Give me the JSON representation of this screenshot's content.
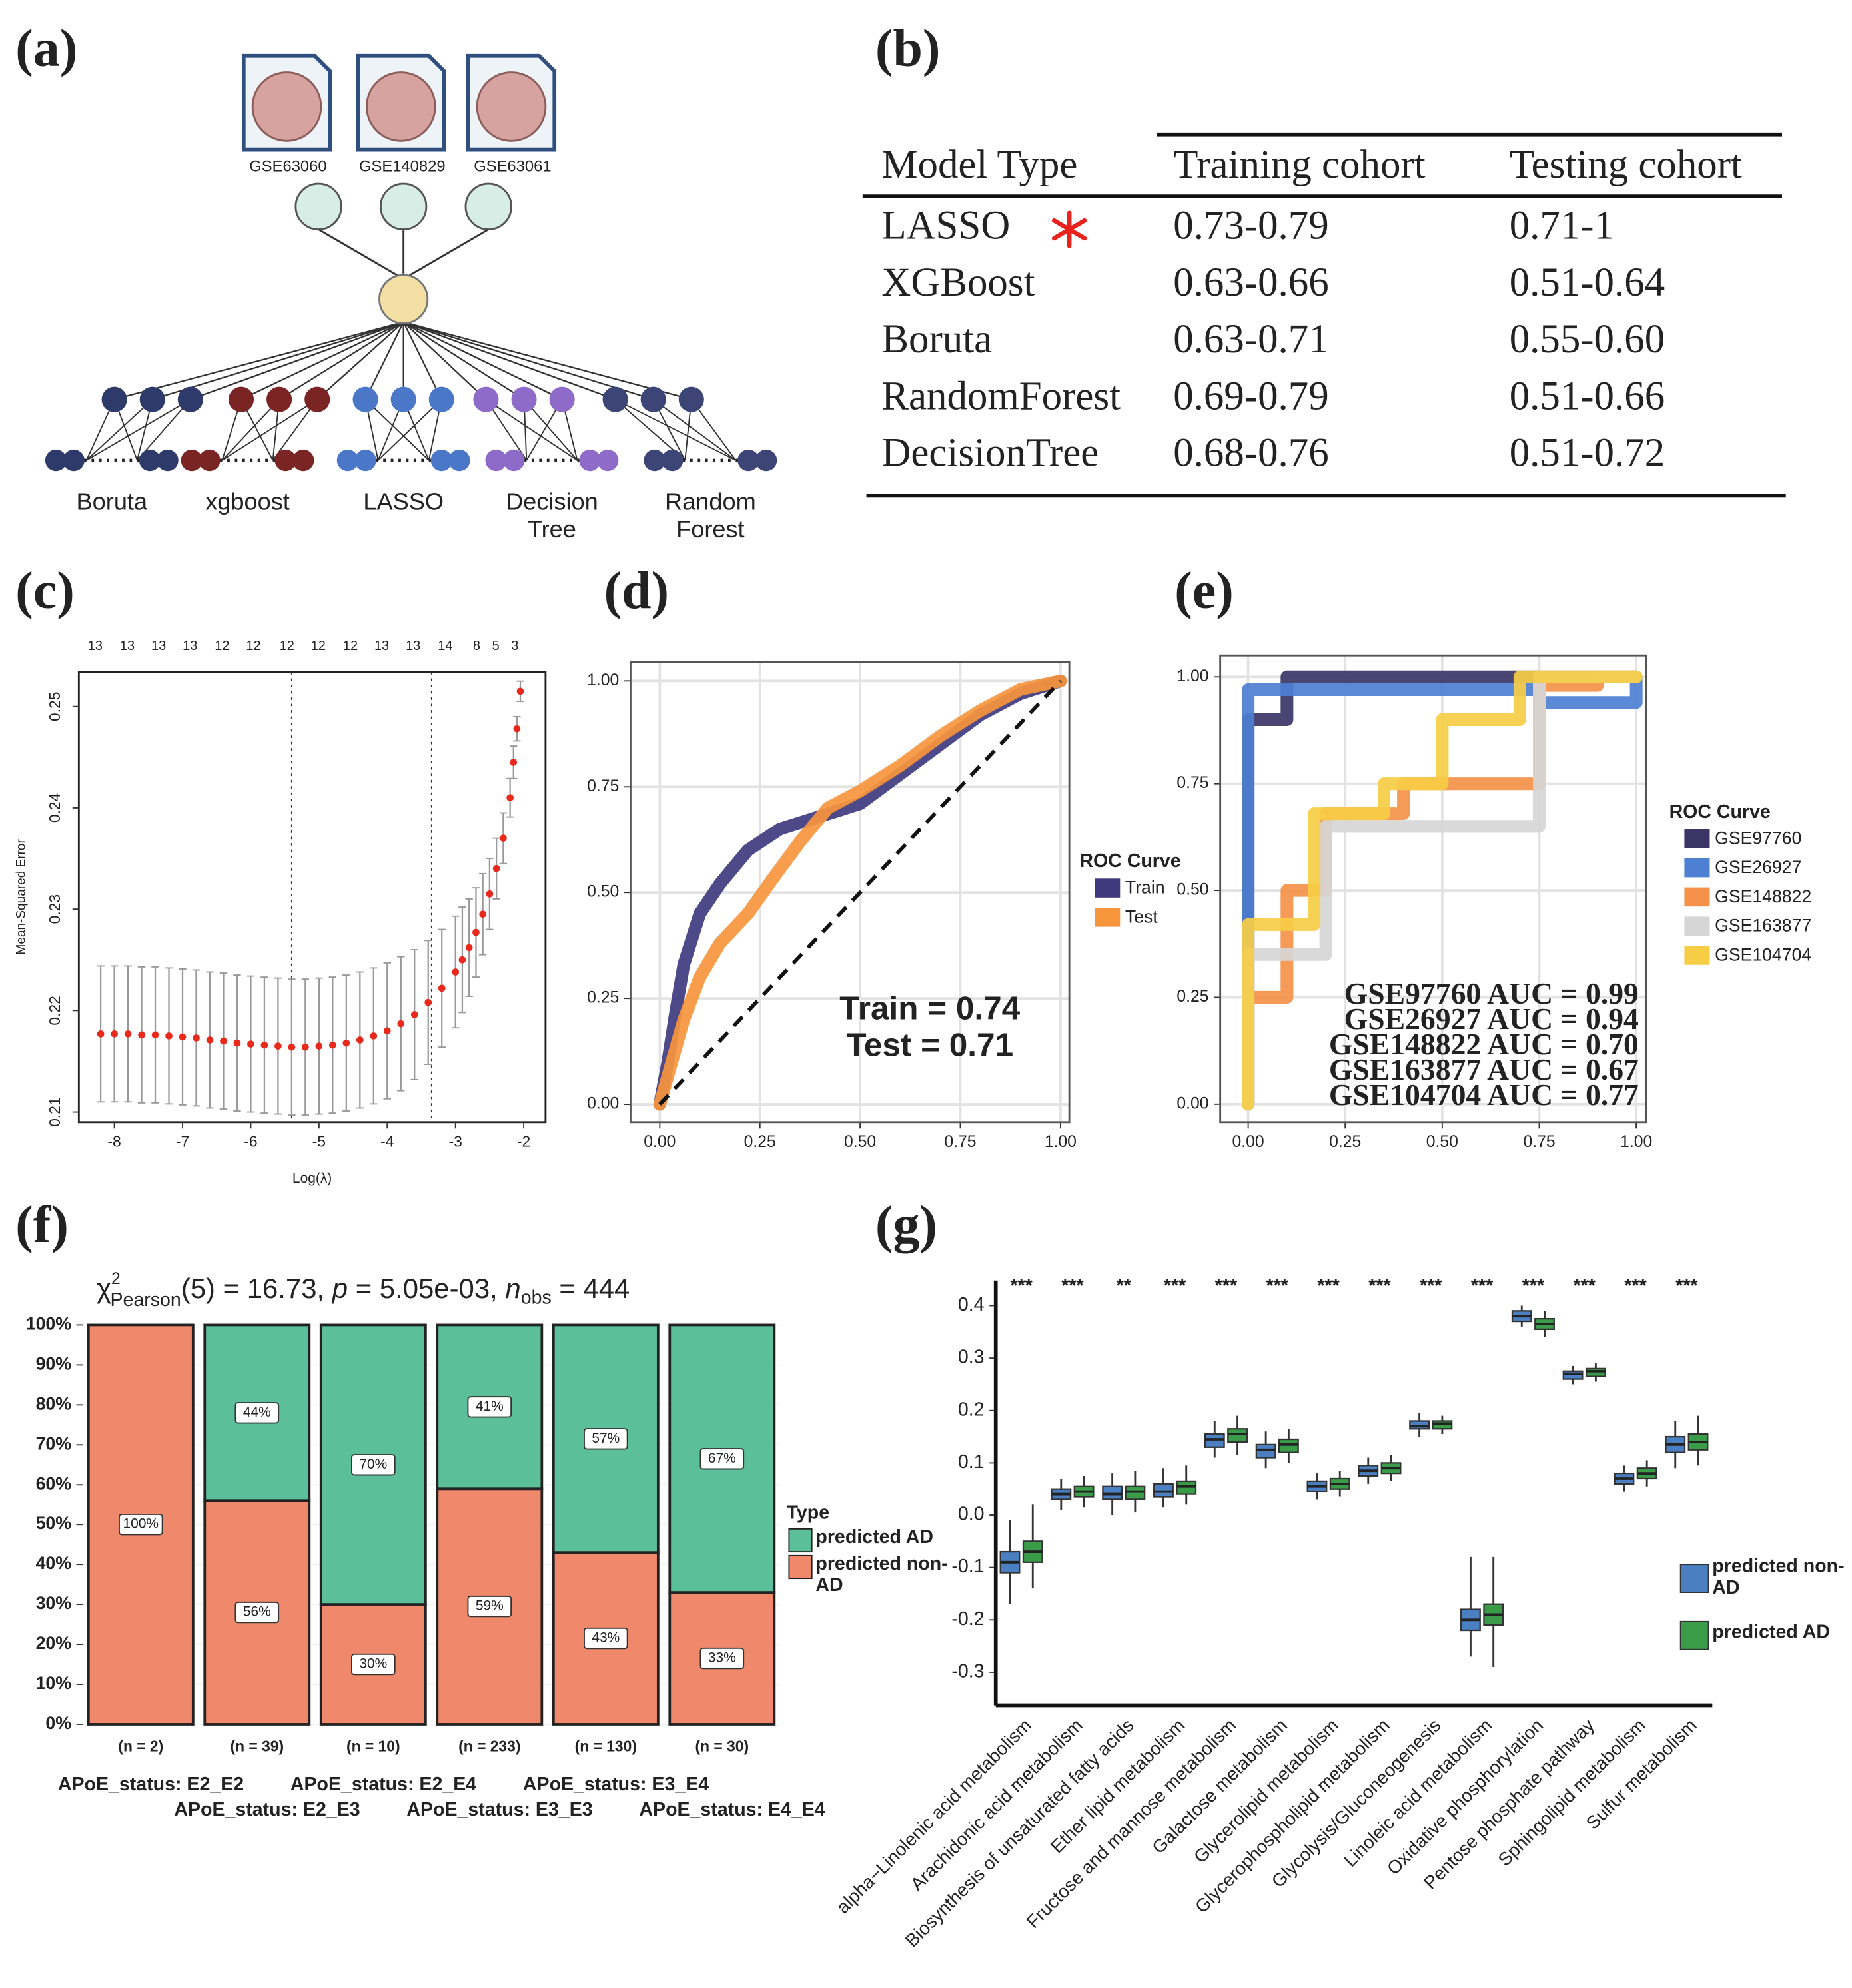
{
  "panel_labels": [
    "(a)",
    "(b)",
    "(c)",
    "(d)",
    "(e)",
    "(f)",
    "(g)"
  ],
  "diagram": {
    "datasets": [
      "GSE63060",
      "GSE140829",
      "GSE63061"
    ],
    "methods": [
      [
        "Boruta"
      ],
      [
        "xgboost"
      ],
      [
        "LASSO"
      ],
      [
        "Decision",
        "Tree"
      ],
      [
        "Random",
        "Forest"
      ]
    ]
  },
  "table": {
    "header": [
      "Model Type",
      "Training cohort",
      "Testing cohort"
    ],
    "rows": [
      [
        "LASSO",
        "0.73-0.79",
        "0.71-1"
      ],
      [
        "XGBoost",
        "0.63-0.66",
        "0.51-0.64"
      ],
      [
        "Boruta",
        "0.63-0.71",
        "0.55-0.60"
      ],
      [
        "RandomForest",
        "0.69-0.79",
        "0.51-0.66"
      ],
      [
        "DecisionTree",
        "0.68-0.76",
        "0.51-0.72"
      ]
    ]
  },
  "chart_data": [
    {
      "type": "errorbar",
      "x_label": "Log(λ)",
      "y_label": "Mean-Squared Error",
      "color": "#e8291c",
      "xlim": [
        -8.52,
        -1.68
      ],
      "ylim": [
        0.209,
        0.2534
      ],
      "xticks": [
        -8,
        -7,
        -6,
        -5,
        -4,
        -3,
        -2
      ],
      "yticks": [
        0.21,
        0.22,
        0.23,
        0.24,
        0.25
      ],
      "top_ticks": [
        {
          "value": -8.28,
          "label": "13"
        },
        {
          "value": -7.81,
          "label": "13"
        },
        {
          "value": -7.35,
          "label": "13"
        },
        {
          "value": -6.89,
          "label": "13"
        },
        {
          "value": -6.42,
          "label": "12"
        },
        {
          "value": -5.96,
          "label": "12"
        },
        {
          "value": -5.47,
          "label": "12"
        },
        {
          "value": -5.01,
          "label": "12"
        },
        {
          "value": -4.54,
          "label": "12"
        },
        {
          "value": -4.08,
          "label": "13"
        },
        {
          "value": -3.62,
          "label": "13"
        },
        {
          "value": -3.15,
          "label": "14"
        },
        {
          "value": -2.69,
          "label": "8"
        },
        {
          "value": -2.41,
          "label": "5"
        },
        {
          "value": -2.13,
          "label": "3"
        }
      ],
      "vlines": [
        -5.4,
        -3.35
      ],
      "x": [
        -8.2,
        -8.0,
        -7.8,
        -7.6,
        -7.4,
        -7.2,
        -7.0,
        -6.8,
        -6.6,
        -6.4,
        -6.2,
        -6.0,
        -5.8,
        -5.6,
        -5.4,
        -5.2,
        -5.0,
        -4.8,
        -4.6,
        -4.4,
        -4.2,
        -4.0,
        -3.8,
        -3.6,
        -3.4,
        -3.2,
        -3.0,
        -2.9,
        -2.8,
        -2.7,
        -2.6,
        -2.5,
        -2.4,
        -2.3,
        -2.2,
        -2.15,
        -2.1,
        -2.05
      ],
      "values": [
        0.2177,
        0.2177,
        0.2177,
        0.2176,
        0.2176,
        0.2175,
        0.2174,
        0.2173,
        0.2171,
        0.217,
        0.2168,
        0.2167,
        0.2166,
        0.2165,
        0.2164,
        0.2164,
        0.2165,
        0.2166,
        0.2168,
        0.2171,
        0.2175,
        0.218,
        0.2187,
        0.2196,
        0.2208,
        0.2222,
        0.2238,
        0.225,
        0.2262,
        0.2277,
        0.2295,
        0.2315,
        0.234,
        0.237,
        0.241,
        0.2445,
        0.2478,
        0.2515
      ],
      "errors": [
        0.0067,
        0.0067,
        0.0067,
        0.0067,
        0.0067,
        0.0067,
        0.0067,
        0.0067,
        0.0067,
        0.0067,
        0.0067,
        0.0067,
        0.0067,
        0.0067,
        0.0067,
        0.0067,
        0.0067,
        0.0067,
        0.0067,
        0.0067,
        0.0067,
        0.0067,
        0.0066,
        0.0064,
        0.0061,
        0.0058,
        0.0055,
        0.0052,
        0.0048,
        0.0044,
        0.004,
        0.0035,
        0.003,
        0.0025,
        0.0019,
        0.0016,
        0.0012,
        0.001
      ]
    },
    {
      "type": "roc",
      "legend_title": "ROC Curve",
      "grid": true,
      "diagonal": true,
      "xlim": [
        -0.073,
        1.022
      ],
      "ylim": [
        -0.042,
        1.045
      ],
      "xticks": [
        {
          "value": 0,
          "label": "0.00"
        },
        0.25,
        {
          "value": 0.5,
          "label": "0.50"
        },
        0.75,
        {
          "value": 1,
          "label": "1.00"
        }
      ],
      "yticks": [
        {
          "value": 0,
          "label": "0.00"
        },
        0.25,
        {
          "value": 0.5,
          "label": "0.50"
        },
        0.75,
        {
          "value": 1,
          "label": "1.00"
        }
      ],
      "series": [
        {
          "name": "Train",
          "color": "#3f3a7e",
          "x": [
            0,
            0.02,
            0.04,
            0.06,
            0.1,
            0.15,
            0.22,
            0.3,
            0.4,
            0.5,
            0.6,
            0.7,
            0.8,
            0.9,
            1
          ],
          "values": [
            0,
            0.1,
            0.22,
            0.33,
            0.45,
            0.52,
            0.6,
            0.65,
            0.68,
            0.71,
            0.78,
            0.85,
            0.92,
            0.97,
            1
          ]
        },
        {
          "name": "Test",
          "color": "#f7953d",
          "x": [
            0,
            0.03,
            0.06,
            0.1,
            0.15,
            0.22,
            0.28,
            0.35,
            0.42,
            0.5,
            0.6,
            0.7,
            0.8,
            0.9,
            1
          ],
          "values": [
            0,
            0.1,
            0.2,
            0.3,
            0.38,
            0.45,
            0.53,
            0.62,
            0.7,
            0.74,
            0.8,
            0.87,
            0.93,
            0.98,
            1
          ]
        }
      ],
      "annotations": [
        "Train = 0.74",
        "Test = 0.71"
      ]
    },
    {
      "type": "roc",
      "legend_title": "ROC Curve",
      "grid": true,
      "diagonal": false,
      "xlim": [
        -0.072,
        1.026
      ],
      "ylim": [
        -0.042,
        1.05
      ],
      "xticks": [
        {
          "value": 0,
          "label": "0.00"
        },
        0.25,
        {
          "value": 0.5,
          "label": "0.50"
        },
        0.75,
        {
          "value": 1,
          "label": "1.00"
        }
      ],
      "yticks": [
        {
          "value": 0,
          "label": "0.00"
        },
        0.25,
        {
          "value": 0.5,
          "label": "0.50"
        },
        0.75,
        {
          "value": 1,
          "label": "1.00"
        }
      ],
      "series": [
        {
          "name": "GSE97760",
          "color": "#3b3566",
          "x": [
            0,
            0,
            0.1,
            0.1,
            1
          ],
          "values": [
            0,
            0.9,
            0.9,
            1,
            1
          ]
        },
        {
          "name": "GSE26927",
          "color": "#4d7fd2",
          "x": [
            0,
            0,
            0.75,
            0.75,
            1,
            1
          ],
          "values": [
            0,
            0.97,
            0.97,
            0.94,
            0.94,
            1
          ]
        },
        {
          "name": "GSE148822",
          "color": "#f5914a",
          "x": [
            0,
            0,
            0.1,
            0.1,
            0.2,
            0.2,
            0.4,
            0.4,
            0.75,
            0.75,
            0.9,
            0.9,
            1
          ],
          "values": [
            0,
            0.25,
            0.25,
            0.5,
            0.5,
            0.68,
            0.68,
            0.75,
            0.75,
            0.98,
            0.98,
            1,
            1
          ]
        },
        {
          "name": "GSE163877",
          "color": "#d6d6d6",
          "x": [
            0,
            0,
            0.2,
            0.2,
            0.75,
            0.75,
            1
          ],
          "values": [
            0,
            0.35,
            0.35,
            0.65,
            0.65,
            1,
            1
          ]
        },
        {
          "name": "GSE104704",
          "color": "#f6cd45",
          "x": [
            0,
            0,
            0.17,
            0.17,
            0.35,
            0.35,
            0.5,
            0.5,
            0.7,
            0.7,
            1
          ],
          "values": [
            0,
            0.42,
            0.42,
            0.68,
            0.68,
            0.75,
            0.75,
            0.9,
            0.9,
            1,
            1
          ]
        }
      ],
      "annotations": [
        "GSE97760 AUC = 0.99",
        "GSE26927 AUC = 0.94",
        "GSE148822 AUC = 0.70",
        "GSE163877 AUC = 0.67",
        "GSE104704 AUC = 0.77"
      ]
    },
    {
      "type": "stacked_bar",
      "stat_parts": [
        "χ",
        "2",
        "Pearson",
        "(5) = 16.73, ",
        "p",
        " = 5.05e-03, ",
        "n",
        "obs",
        " = 444"
      ],
      "legend_title": "Type",
      "categories": [
        "APoE_status: E2_E2",
        "APoE_status: E2_E3",
        "APoE_status: E2_E4",
        "APoE_status: E3_E3",
        "APoE_status: E3_E4",
        "APoE_status: E4_E4"
      ],
      "n_labels": [
        "(n = 2)",
        "(n = 39)",
        "(n = 10)",
        "(n = 233)",
        "(n = 130)",
        "(n = 30)"
      ],
      "ylim": [
        -1.6,
        101.6
      ],
      "yticks": [
        {
          "value": 0,
          "label": "0%"
        },
        {
          "value": 10,
          "label": "10%"
        },
        {
          "value": 20,
          "label": "20%"
        },
        {
          "value": 30,
          "label": "30%"
        },
        {
          "value": 40,
          "label": "40%"
        },
        {
          "value": 50,
          "label": "50%"
        },
        {
          "value": 60,
          "label": "60%"
        },
        {
          "value": 70,
          "label": "70%"
        },
        {
          "value": 80,
          "label": "80%"
        },
        {
          "value": 90,
          "label": "90%"
        },
        {
          "value": 100,
          "label": "100%"
        }
      ],
      "series": [
        {
          "name": "predicted non-AD",
          "color": "#f0896c",
          "values": [
            100,
            56,
            30,
            59,
            43,
            33
          ],
          "value_labels": [
            "100%",
            "56%",
            "30%",
            "59%",
            "43%",
            "33%"
          ]
        },
        {
          "name": "predicted AD",
          "color": "#5cbf9c",
          "values": [
            0,
            44,
            70,
            41,
            57,
            67
          ],
          "value_labels": [
            null,
            "44%",
            "70%",
            "41%",
            "57%",
            "67%"
          ]
        }
      ]
    },
    {
      "type": "box",
      "ylim": [
        -0.363,
        0.448
      ],
      "yticks": [
        0.4,
        0.3,
        0.2,
        0.1,
        {
          "value": 0,
          "label": "0.0"
        },
        -0.1,
        -0.2,
        -0.3
      ],
      "categories": [
        "alpha−Linolenic acid metabolism",
        "Arachidonic acid metabolism",
        "Biosynthesis of unsaturated fatty acids",
        "Ether lipid metabolism",
        "Fructose and mannose metabolism",
        "Galactose metabolism",
        "Glycerolipid metabolism",
        "Glycerophospholipid metabolism",
        "Glycolysis/Gluconeogenesis",
        "Linoleic acid metabolism",
        "Oxidative phosphorylation",
        "Pentose phosphate pathway",
        "Sphingolipid metabolism",
        "Sulfur metabolism"
      ],
      "significance": [
        "***",
        "***",
        "**",
        "***",
        "***",
        "***",
        "***",
        "***",
        "***",
        "***",
        "***",
        "***",
        "***",
        "***"
      ],
      "series": [
        {
          "name": "predicted non-AD",
          "color": "#4a7fc1",
          "values": [
            [
              -0.17,
              -0.11,
              -0.09,
              -0.07,
              -0.01
            ],
            [
              0.01,
              0.03,
              0.04,
              0.05,
              0.07
            ],
            [
              0.0,
              0.03,
              0.04,
              0.055,
              0.08
            ],
            [
              0.015,
              0.035,
              0.045,
              0.06,
              0.09
            ],
            [
              0.11,
              0.13,
              0.145,
              0.155,
              0.18
            ],
            [
              0.09,
              0.11,
              0.125,
              0.135,
              0.16
            ],
            [
              0.03,
              0.045,
              0.055,
              0.065,
              0.08
            ],
            [
              0.06,
              0.075,
              0.085,
              0.095,
              0.11
            ],
            [
              0.15,
              0.165,
              0.17,
              0.18,
              0.195
            ],
            [
              -0.27,
              -0.22,
              -0.2,
              -0.18,
              -0.08
            ],
            [
              0.36,
              0.37,
              0.38,
              0.39,
              0.4
            ],
            [
              0.25,
              0.26,
              0.27,
              0.275,
              0.285
            ],
            [
              0.045,
              0.06,
              0.07,
              0.08,
              0.095
            ],
            [
              0.09,
              0.12,
              0.135,
              0.15,
              0.18
            ]
          ]
        },
        {
          "name": "predicted AD",
          "color": "#3a9b48",
          "values": [
            [
              -0.14,
              -0.09,
              -0.07,
              -0.05,
              0.02
            ],
            [
              0.015,
              0.035,
              0.045,
              0.055,
              0.075
            ],
            [
              0.005,
              0.03,
              0.045,
              0.055,
              0.085
            ],
            [
              0.02,
              0.04,
              0.055,
              0.065,
              0.095
            ],
            [
              0.115,
              0.14,
              0.155,
              0.165,
              0.19
            ],
            [
              0.1,
              0.12,
              0.135,
              0.145,
              0.165
            ],
            [
              0.035,
              0.05,
              0.06,
              0.07,
              0.085
            ],
            [
              0.065,
              0.08,
              0.09,
              0.1,
              0.115
            ],
            [
              0.155,
              0.165,
              0.175,
              0.18,
              0.19
            ],
            [
              -0.29,
              -0.21,
              -0.19,
              -0.17,
              -0.08
            ],
            [
              0.34,
              0.355,
              0.365,
              0.375,
              0.39
            ],
            [
              0.255,
              0.265,
              0.275,
              0.28,
              0.29
            ],
            [
              0.055,
              0.07,
              0.08,
              0.09,
              0.105
            ],
            [
              0.095,
              0.125,
              0.14,
              0.155,
              0.19
            ]
          ]
        }
      ]
    }
  ]
}
